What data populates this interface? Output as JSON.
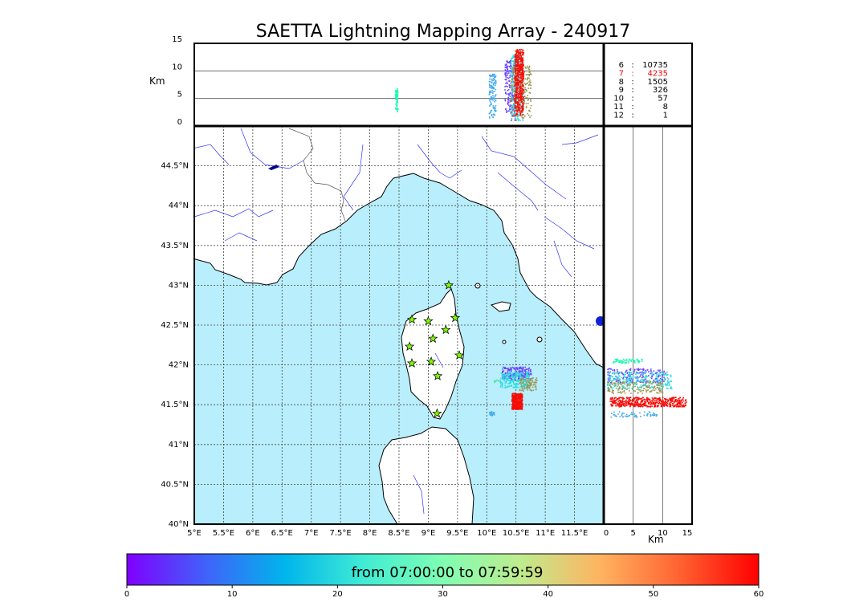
{
  "title": "SAETTA Lightning Mapping Array - 240917",
  "colors": {
    "sea": "#b9eefc",
    "land": "#ffffff",
    "coast": "#000000",
    "rivers": "#3333ff",
    "borders": "#555555",
    "stations": "#7cfc00",
    "highlight_count": "#ff0000"
  },
  "chart_data": [
    {
      "name": "altitude-vs-longitude",
      "type": "scatter",
      "ylabel": "Km",
      "xlim": [
        5,
        12
      ],
      "ylim": [
        0,
        15
      ],
      "yticks": [
        "0",
        "5",
        "10",
        "15"
      ],
      "grid": "horizontal lines at 5 and 10 km",
      "clusters": [
        {
          "lon": [
            8.43,
            8.47
          ],
          "alt": [
            2.5,
            7.0
          ],
          "color_minute": 32,
          "count": 60
        },
        {
          "lon": [
            10.03,
            10.15
          ],
          "alt": [
            1.5,
            9.5
          ],
          "color_minute": 14,
          "count": 130
        },
        {
          "lon": [
            10.3,
            10.48
          ],
          "alt": [
            1.0,
            12.0
          ],
          "color_minute": 5,
          "count": 220
        },
        {
          "lon": [
            10.4,
            10.62
          ],
          "alt": [
            1.0,
            13.0
          ],
          "color_minute": 20,
          "count": 260
        },
        {
          "lon": [
            10.4,
            10.75
          ],
          "alt": [
            1.0,
            11.0
          ],
          "color_minute": 48,
          "count": 220
        },
        {
          "lon": [
            10.47,
            10.62
          ],
          "alt": [
            2.0,
            14.0
          ],
          "color_minute": 59,
          "count": 500
        }
      ]
    },
    {
      "name": "map",
      "type": "scatter",
      "projection": "lat-lon",
      "xlim": [
        5,
        12
      ],
      "ylim": [
        40,
        45
      ],
      "xticks": [
        "5°E",
        "5.5°E",
        "6°E",
        "6.5°E",
        "7°E",
        "7.5°E",
        "8°E",
        "8.5°E",
        "9°E",
        "9.5°E",
        "10°E",
        "10.5°E",
        "11°E",
        "11.5°E"
      ],
      "yticks": [
        "40°N",
        "40.5°N",
        "41°N",
        "41.5°N",
        "42°N",
        "42.5°N",
        "43°N",
        "43.5°N",
        "44°N",
        "44.5°N"
      ],
      "grid": "dotted lat-lon graticule",
      "stations": [
        {
          "lon": 9.35,
          "lat": 43.0
        },
        {
          "lon": 8.72,
          "lat": 42.57
        },
        {
          "lon": 9.0,
          "lat": 42.55
        },
        {
          "lon": 9.46,
          "lat": 42.59
        },
        {
          "lon": 9.3,
          "lat": 42.44
        },
        {
          "lon": 9.08,
          "lat": 42.33
        },
        {
          "lon": 8.68,
          "lat": 42.23
        },
        {
          "lon": 9.53,
          "lat": 42.12
        },
        {
          "lon": 8.72,
          "lat": 42.02
        },
        {
          "lon": 9.05,
          "lat": 42.04
        },
        {
          "lon": 9.16,
          "lat": 41.86
        },
        {
          "lon": 9.15,
          "lat": 41.39
        }
      ],
      "clusters": [
        {
          "lon": [
            10.25,
            10.75
          ],
          "lat": [
            41.82,
            41.98
          ],
          "color_minute": 5,
          "count": 200
        },
        {
          "lon": [
            10.22,
            10.72
          ],
          "lat": [
            41.72,
            41.92
          ],
          "color_minute": 20,
          "count": 220
        },
        {
          "lon": [
            10.55,
            10.85
          ],
          "lat": [
            41.68,
            41.85
          ],
          "color_minute": 48,
          "count": 90
        },
        {
          "lon": [
            10.42,
            10.6
          ],
          "lat": [
            41.45,
            41.65
          ],
          "color_minute": 59,
          "count": 420
        },
        {
          "lon": [
            10.04,
            10.12
          ],
          "lat": [
            41.37,
            41.42
          ],
          "color_minute": 14,
          "count": 30
        },
        {
          "lon": [
            10.12,
            10.2
          ],
          "lat": [
            41.78,
            41.82
          ],
          "color_minute": 38,
          "count": 8
        }
      ]
    },
    {
      "name": "latitude-vs-altitude",
      "type": "scatter",
      "xlabel": "Km",
      "xlim": [
        0,
        15
      ],
      "ylim": [
        40,
        45
      ],
      "xticks": [
        "0",
        "5",
        "10",
        "15"
      ],
      "grid": "vertical lines at 5 and 10 km",
      "clusters": [
        {
          "alt": [
            1.5,
            6.5
          ],
          "lat": [
            42.03,
            42.08
          ],
          "color_minute": 32,
          "count": 60
        },
        {
          "alt": [
            0.5,
            10.5
          ],
          "lat": [
            41.78,
            41.96
          ],
          "color_minute": 5,
          "count": 200
        },
        {
          "alt": [
            0.5,
            11.5
          ],
          "lat": [
            41.7,
            41.92
          ],
          "color_minute": 20,
          "count": 260
        },
        {
          "alt": [
            0.5,
            10.0
          ],
          "lat": [
            41.65,
            41.8
          ],
          "color_minute": 48,
          "count": 150
        },
        {
          "alt": [
            1.0,
            14.0
          ],
          "lat": [
            41.48,
            41.6
          ],
          "color_minute": 59,
          "count": 500
        },
        {
          "alt": [
            1.0,
            9.0
          ],
          "lat": [
            41.35,
            41.42
          ],
          "color_minute": 14,
          "count": 60
        }
      ]
    },
    {
      "name": "counts",
      "type": "table",
      "rows": [
        {
          "k": "6",
          "v": "10735",
          "highlight": false
        },
        {
          "k": "7",
          "v": "4235",
          "highlight": true
        },
        {
          "k": "8",
          "v": "1505",
          "highlight": false
        },
        {
          "k": "9",
          "v": "326",
          "highlight": false
        },
        {
          "k": "10",
          "v": "57",
          "highlight": false
        },
        {
          "k": "11",
          "v": "8",
          "highlight": false
        },
        {
          "k": "12",
          "v": "1",
          "highlight": false
        }
      ]
    },
    {
      "name": "colorbar",
      "type": "colorbar",
      "label": "from 07:00:00 to 07:59:59",
      "range": [
        0,
        60
      ],
      "ticks": [
        "0",
        "10",
        "20",
        "30",
        "40",
        "50",
        "60"
      ],
      "colormap": "rainbow"
    }
  ]
}
